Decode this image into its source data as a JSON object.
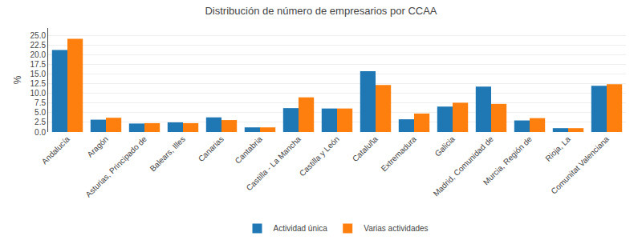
{
  "chart_data": {
    "type": "bar",
    "title": "Distribución de número de empresarios por CCAA",
    "ylabel": "%",
    "categories": [
      "Andalucía",
      "Aragón",
      "Asturias, Principado de",
      "Balears, Illes",
      "Canarias",
      "Cantabria",
      "Castilla - La Mancha",
      "Castilla y León",
      "Cataluña",
      "Extremadura",
      "Galicia",
      "Madrid, Comunidad de",
      "Murcia, Región de",
      "Rioja, La",
      "Comunitat Valenciana"
    ],
    "series": [
      {
        "name": "Actividad única",
        "values": [
          21.3,
          3.2,
          2.2,
          2.5,
          3.8,
          1.2,
          6.2,
          6.1,
          15.8,
          3.3,
          6.6,
          11.8,
          3.0,
          1.0,
          12.0
        ]
      },
      {
        "name": "Varias actividades",
        "values": [
          24.2,
          3.7,
          2.3,
          2.3,
          3.1,
          1.2,
          9.0,
          6.1,
          12.2,
          4.8,
          7.6,
          7.3,
          3.6,
          1.0,
          12.4
        ]
      }
    ],
    "ylim": [
      0,
      27
    ],
    "yticks": [
      {
        "value": 0,
        "label": "0.0"
      },
      2.5,
      {
        "value": 5,
        "label": "5.0"
      },
      7.5,
      {
        "value": 10,
        "label": "10.0"
      },
      12.5,
      {
        "value": 15,
        "label": "15.0"
      },
      17.5,
      {
        "value": 20,
        "label": "20.0"
      },
      22.5,
      {
        "value": 25,
        "label": "25.0"
      }
    ],
    "grid": true,
    "legend": "bottom"
  }
}
